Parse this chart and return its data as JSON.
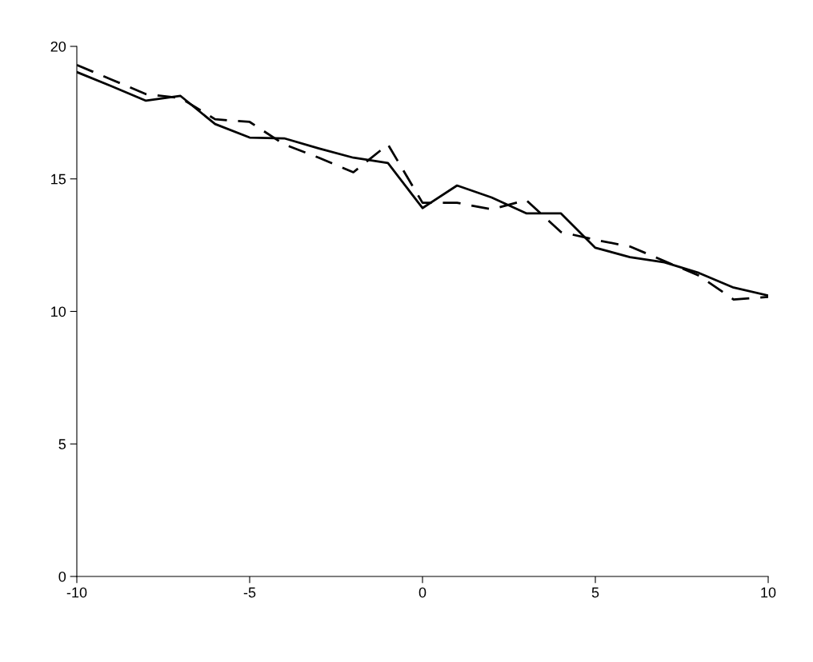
{
  "chart_data": {
    "type": "line",
    "x": [
      -10,
      -9,
      -8,
      -7,
      -6,
      -5,
      -4,
      -3,
      -2,
      -1,
      0,
      1,
      2,
      3,
      4,
      5,
      6,
      7,
      8,
      9,
      10
    ],
    "series": [
      {
        "color": "#000000",
        "line_style": "solid",
        "values": [
          19.03,
          18.5,
          17.95,
          18.13,
          17.07,
          16.56,
          16.53,
          16.15,
          15.8,
          15.6,
          13.9,
          14.75,
          14.3,
          13.7,
          13.7,
          12.4,
          12.05,
          11.85,
          11.45,
          10.9,
          10.6
        ]
      },
      {
        "color": "#000000",
        "line_style": "dashed",
        "values": [
          19.3,
          18.75,
          18.2,
          18.05,
          17.25,
          17.15,
          16.3,
          15.8,
          15.25,
          16.3,
          14.1,
          14.1,
          13.85,
          14.2,
          13.0,
          12.7,
          12.45,
          11.9,
          11.35,
          10.45,
          10.55
        ]
      }
    ],
    "xlim": [
      -10,
      10
    ],
    "xticks": [
      -10,
      -5,
      0,
      5,
      10
    ],
    "ylim": [
      0,
      20
    ],
    "yticks": [
      0,
      5,
      10,
      15,
      20
    ],
    "grid": false,
    "marker": "none"
  }
}
